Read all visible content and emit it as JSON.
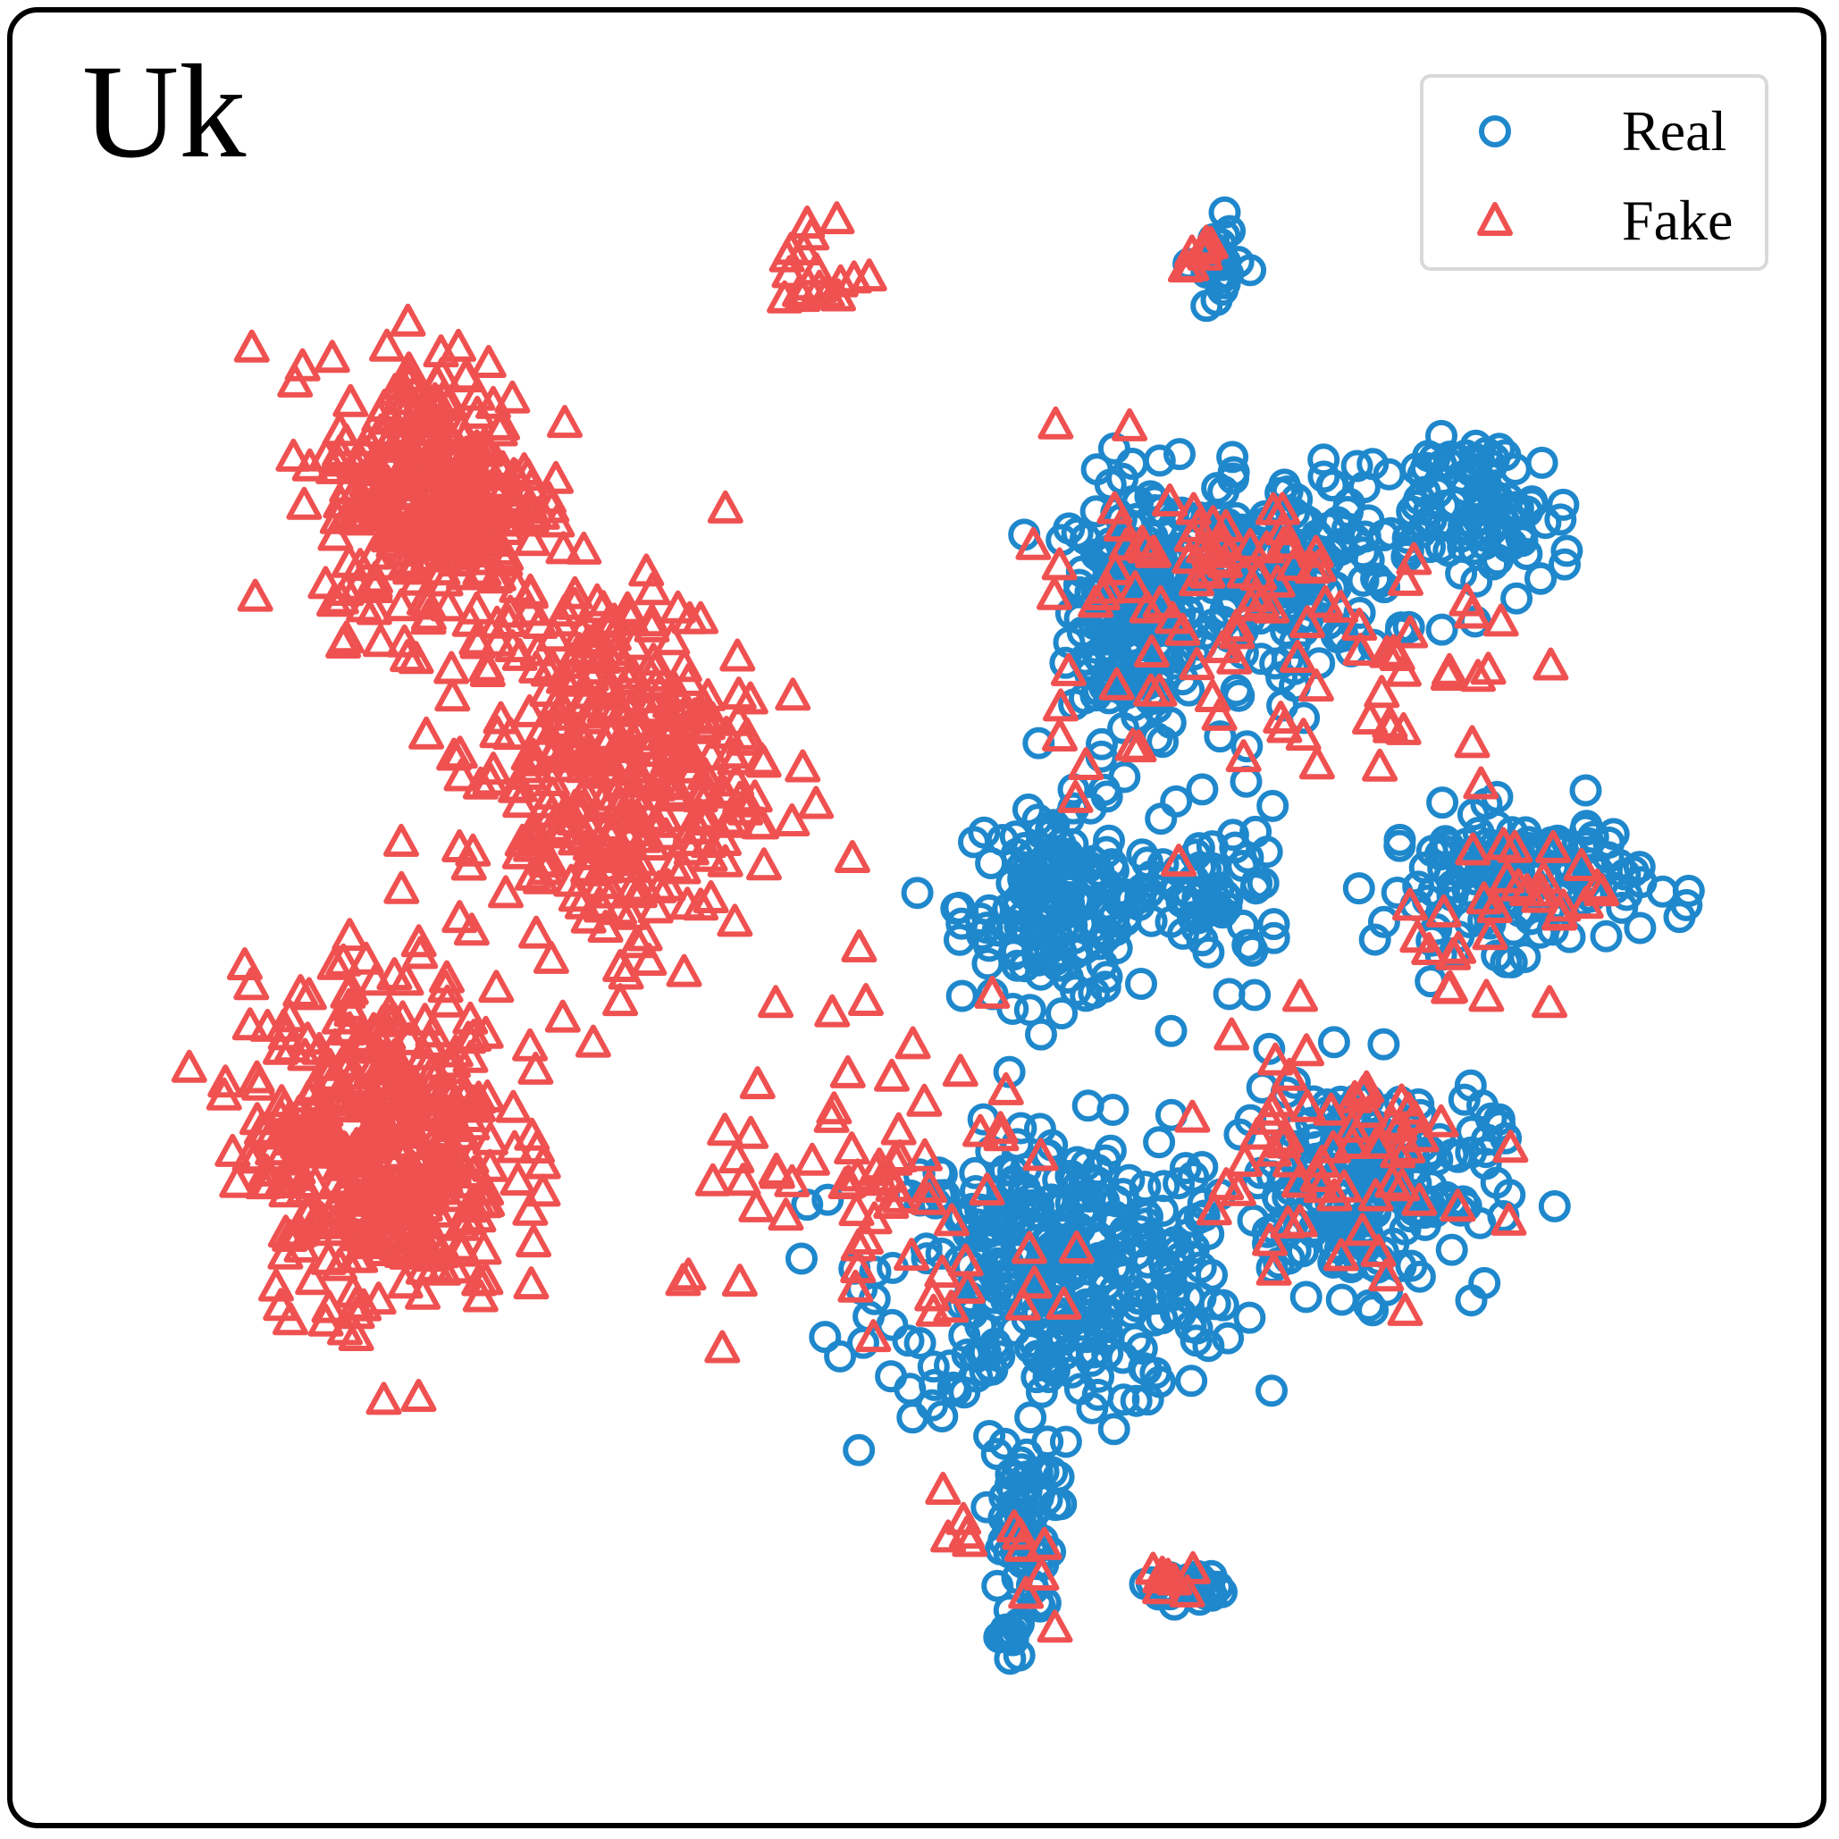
{
  "panel_label": "Uk",
  "chart_data": {
    "type": "scatter",
    "title": "",
    "xlabel": "",
    "ylabel": "",
    "xlim": [
      0,
      100
    ],
    "ylim": [
      0,
      100
    ],
    "grid": false,
    "legend_position": "top-right",
    "series": [
      {
        "name": "Real",
        "marker": "circle",
        "color": "#1f88cc",
        "clusters": [
          {
            "x": 63.0,
            "y": 69.5,
            "spread": [
              3.2,
              6.5
            ],
            "count": 210
          },
          {
            "x": 58.5,
            "y": 51.5,
            "spread": [
              5.0,
              5.0
            ],
            "count": 170
          },
          {
            "x": 58.5,
            "y": 29.0,
            "spread": [
              9.0,
              7.0
            ],
            "count": 360
          },
          {
            "x": 56.0,
            "y": 14.0,
            "spread": [
              1.8,
              4.5
            ],
            "count": 60
          },
          {
            "x": 55.5,
            "y": 7.0,
            "spread": [
              0.6,
              1.5
            ],
            "count": 12
          },
          {
            "x": 66.0,
            "y": 10.0,
            "spread": [
              2.0,
              0.8
            ],
            "count": 24
          },
          {
            "x": 71.5,
            "y": 71.5,
            "spread": [
              6.0,
              5.5
            ],
            "count": 180
          },
          {
            "x": 85.0,
            "y": 75.0,
            "spread": [
              4.0,
              4.0
            ],
            "count": 70
          },
          {
            "x": 86.0,
            "y": 53.0,
            "spread": [
              6.5,
              3.5
            ],
            "count": 150
          },
          {
            "x": 68.0,
            "y": 52.0,
            "spread": [
              3.5,
              4.0
            ],
            "count": 60
          },
          {
            "x": 77.0,
            "y": 34.5,
            "spread": [
              6.5,
              5.5
            ],
            "count": 200
          },
          {
            "x": 68.0,
            "y": 90.5,
            "spread": [
              1.2,
              2.5
            ],
            "count": 24
          },
          {
            "x": 81.0,
            "y": 75.0,
            "spread": [
              3.5,
              3.5
            ],
            "count": 40
          }
        ]
      },
      {
        "name": "Fake",
        "marker": "triangle",
        "color": "#ef5151",
        "clusters": [
          {
            "x": 20.5,
            "y": 76.5,
            "spread": [
              5.5,
              7.0
            ],
            "count": 320
          },
          {
            "x": 31.0,
            "y": 60.0,
            "spread": [
              7.5,
              9.5
            ],
            "count": 340
          },
          {
            "x": 17.0,
            "y": 37.0,
            "spread": [
              6.5,
              8.5
            ],
            "count": 420
          },
          {
            "x": 44.0,
            "y": 90.0,
            "spread": [
              2.0,
              3.0
            ],
            "count": 18
          },
          {
            "x": 63.5,
            "y": 70.0,
            "spread": [
              6.0,
              8.5
            ],
            "count": 40
          },
          {
            "x": 70.0,
            "y": 72.0,
            "spread": [
              4.0,
              3.0
            ],
            "count": 30
          },
          {
            "x": 77.0,
            "y": 65.0,
            "spread": [
              8.0,
              7.5
            ],
            "count": 40
          },
          {
            "x": 87.0,
            "y": 52.0,
            "spread": [
              6.0,
              4.0
            ],
            "count": 30
          },
          {
            "x": 49.0,
            "y": 33.0,
            "spread": [
              11.0,
              8.0
            ],
            "count": 70
          },
          {
            "x": 75.0,
            "y": 35.0,
            "spread": [
              8.0,
              7.0
            ],
            "count": 60
          },
          {
            "x": 55.0,
            "y": 12.0,
            "spread": [
              3.5,
              5.0
            ],
            "count": 12
          },
          {
            "x": 65.5,
            "y": 10.5,
            "spread": [
              1.5,
              0.8
            ],
            "count": 8
          },
          {
            "x": 67.0,
            "y": 92.0,
            "spread": [
              1.0,
              2.0
            ],
            "count": 8
          }
        ]
      }
    ]
  }
}
